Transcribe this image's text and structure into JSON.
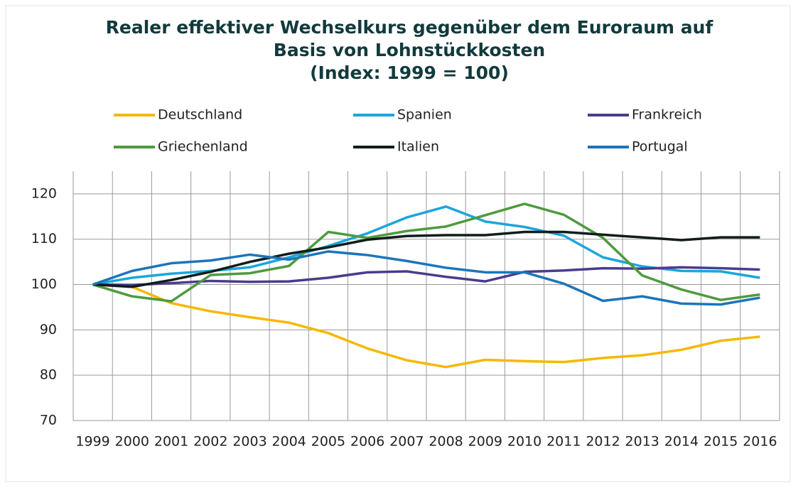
{
  "chart_data": {
    "type": "line",
    "title": [
      "Realer effektiver Wechselkurs gegenüber dem Euroraum auf",
      "Basis von Lohnstückkosten",
      "(Index: 1999 = 100)"
    ],
    "categories": [
      "1999",
      "2000",
      "2001",
      "2002",
      "2003",
      "2004",
      "2005",
      "2006",
      "2007",
      "2008",
      "2009",
      "2010",
      "2011",
      "2012",
      "2013",
      "2014",
      "2015",
      "2016"
    ],
    "series": [
      {
        "name": "Deutschland",
        "color": "#f5b800",
        "values": [
          100,
          99.5,
          95.9,
          94.1,
          92.8,
          91.6,
          89.3,
          85.9,
          83.3,
          81.8,
          83.4,
          83.1,
          82.9,
          83.8,
          84.4,
          85.6,
          87.6,
          88.5
        ]
      },
      {
        "name": "Spanien",
        "color": "#1aa6dc",
        "values": [
          100,
          101.5,
          102.4,
          103,
          103.8,
          106,
          108.5,
          111.3,
          114.8,
          117.2,
          113.9,
          112.7,
          110.8,
          106,
          104,
          103,
          102.9,
          101.5
        ]
      },
      {
        "name": "Frankreich",
        "color": "#4b3b8f",
        "values": [
          100,
          99.9,
          100.3,
          100.8,
          100.6,
          100.7,
          101.5,
          102.7,
          102.9,
          101.7,
          100.7,
          102.8,
          103.1,
          103.6,
          103.5,
          103.8,
          103.6,
          103.3
        ]
      },
      {
        "name": "Griechenland",
        "color": "#4f9a3e",
        "values": [
          100,
          97.4,
          96.3,
          102.1,
          102.5,
          104.1,
          111.6,
          110.3,
          111.8,
          112.8,
          115.3,
          117.8,
          115.4,
          110.3,
          102,
          98.9,
          96.6,
          97.8
        ]
      },
      {
        "name": "Italien",
        "color": "#111d1c",
        "values": [
          100,
          99.5,
          101,
          102.8,
          105,
          106.8,
          108.2,
          109.9,
          110.7,
          110.9,
          110.9,
          111.6,
          111.6,
          111,
          110.4,
          109.8,
          110.4,
          110.4
        ]
      },
      {
        "name": "Portugal",
        "color": "#1b75bb",
        "values": [
          100,
          103,
          104.7,
          105.3,
          106.6,
          105.5,
          107.3,
          106.5,
          105.2,
          103.7,
          102.7,
          102.7,
          100.2,
          96.4,
          97.4,
          95.8,
          95.6,
          97.1
        ]
      }
    ],
    "ylim": [
      70,
      125
    ],
    "yticks": [
      70,
      80,
      90,
      100,
      110,
      120
    ],
    "grid": true
  }
}
